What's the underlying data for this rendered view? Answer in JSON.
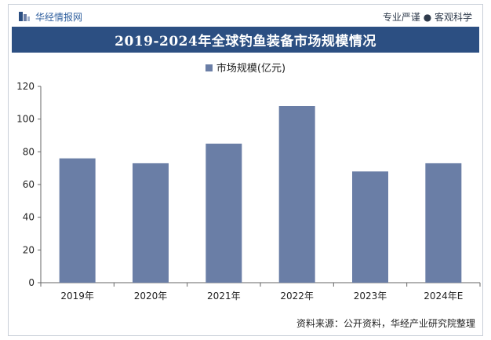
{
  "header": {
    "logo_text": "华经情报网",
    "tagline": "专业严谨 ● 客观科学"
  },
  "chart_data": {
    "type": "bar",
    "title": "2019-2024年全球钓鱼装备市场规模情况",
    "categories": [
      "2019年",
      "2020年",
      "2021年",
      "2022年",
      "2023年",
      "2024年E"
    ],
    "series": [
      {
        "name": "市场规模(亿元)",
        "values": [
          76,
          73,
          85,
          108,
          68,
          73
        ],
        "color": "#6a7ea6"
      }
    ],
    "ylim": [
      0,
      120
    ],
    "yticks": [
      0,
      20,
      40,
      60,
      80,
      100,
      120
    ],
    "xlabel": "",
    "ylabel": "",
    "legend_position": "top-center",
    "grid": false
  },
  "footer": {
    "source": "资料来源：公开资料，华经产业研究院整理"
  },
  "colors": {
    "title_band": "#2c4f82",
    "bar": "#6a7ea6",
    "axis": "#666666"
  }
}
